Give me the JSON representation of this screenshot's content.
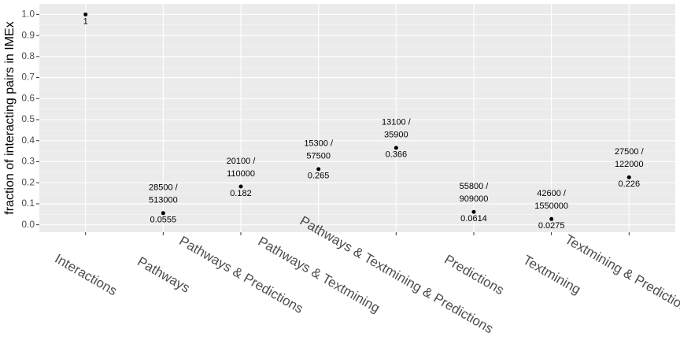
{
  "chart_data": {
    "type": "scatter",
    "y_label": "fraction of interacting pairs in IMEx",
    "categories": [
      "Interactions",
      "Pathways",
      "Pathways & Predictions",
      "Pathways & Textmining",
      "Pathways & Textmining & Predictions",
      "Predictions",
      "Textmining",
      "Textmining & Predictions"
    ],
    "values": [
      1,
      0.0555,
      0.182,
      0.265,
      0.366,
      0.0614,
      0.0275,
      0.226
    ],
    "ratio_labels": [
      null,
      [
        "28500 /",
        "513000"
      ],
      [
        "20100 /",
        "110000"
      ],
      [
        "15300 /",
        "57500"
      ],
      [
        "13100 /",
        "35900"
      ],
      [
        "55800 /",
        "909000"
      ],
      [
        "42600 /",
        "1550000"
      ],
      [
        "27500 /",
        "122000"
      ]
    ],
    "color": "#000000",
    "ylim": [
      -0.035,
      1.05
    ],
    "yticks": [
      {
        "value": 0,
        "label": "0.0"
      },
      0.1,
      0.2,
      0.3,
      0.4,
      0.5,
      0.6,
      0.7,
      0.8,
      0.9,
      {
        "value": 1,
        "label": "1.0"
      }
    ],
    "grid": true
  }
}
